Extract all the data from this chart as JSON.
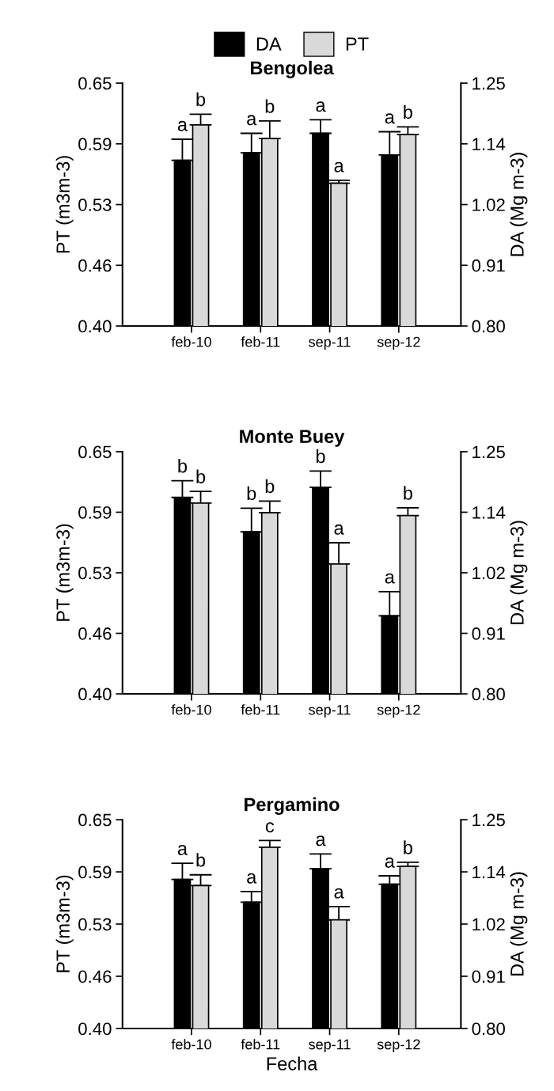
{
  "chart_data": [
    {
      "type": "bar",
      "title": "Bengolea",
      "ylabel": "PT (m3m-3)",
      "y2label": "DA (Mg m-3)",
      "categories": [
        "feb-10",
        "feb-11",
        "sep-11",
        "sep-12"
      ],
      "legend": "top",
      "grid": false,
      "ylim": [
        0.4,
        0.65
      ],
      "yticks": [
        {
          "value": 0.4,
          "label": "0.40"
        },
        {
          "value": 0.4625,
          "label": "0.46"
        },
        {
          "value": 0.525,
          "label": "0.53"
        },
        {
          "value": 0.5875,
          "label": "0.59"
        },
        {
          "value": 0.65,
          "label": "0.65"
        }
      ],
      "y2lim": [
        0.8,
        1.25
      ],
      "y2ticks": [
        {
          "value": 0.8,
          "label": "0.80"
        },
        {
          "value": 0.9125,
          "label": "0.91"
        },
        {
          "value": 1.025,
          "label": "1.02"
        },
        {
          "value": 1.1375,
          "label": "1.14"
        },
        {
          "value": 1.25,
          "label": "1.25"
        }
      ],
      "series": [
        {
          "name": "DA",
          "color": "#000000",
          "axis": "y2",
          "values": [
            1.107,
            1.121,
            1.157,
            1.117
          ],
          "errors": [
            [
              1.107,
              1.146
            ],
            [
              1.121,
              1.157
            ],
            [
              1.157,
              1.182
            ],
            [
              1.117,
              1.16
            ]
          ],
          "value_labels": [
            "a",
            "a",
            "a",
            "a"
          ]
        },
        {
          "name": "PT",
          "color": "#d9d9d9",
          "values": [
            0.607,
            0.593,
            0.547,
            0.597
          ],
          "errors": [
            [
              0.607,
              0.618
            ],
            [
              0.593,
              0.611
            ],
            [
              0.547,
              0.55
            ],
            [
              0.597,
              0.605
            ]
          ],
          "value_labels": [
            "b",
            "b",
            "a",
            "b"
          ]
        }
      ]
    },
    {
      "type": "bar",
      "title": "Monte Buey",
      "ylabel": "PT (m3m-3)",
      "y2label": "DA (Mg m-3)",
      "categories": [
        "feb-10",
        "feb-11",
        "sep-11",
        "sep-12"
      ],
      "grid": false,
      "ylim": [
        0.4,
        0.65
      ],
      "yticks": [
        {
          "value": 0.4,
          "label": "0.40"
        },
        {
          "value": 0.4625,
          "label": "0.46"
        },
        {
          "value": 0.525,
          "label": "0.53"
        },
        {
          "value": 0.5875,
          "label": "0.59"
        },
        {
          "value": 0.65,
          "label": "0.65"
        }
      ],
      "y2lim": [
        0.8,
        1.25
      ],
      "y2ticks": [
        {
          "value": 0.8,
          "label": "0.80"
        },
        {
          "value": 0.9125,
          "label": "0.91"
        },
        {
          "value": 1.025,
          "label": "1.02"
        },
        {
          "value": 1.1375,
          "label": "1.14"
        },
        {
          "value": 1.25,
          "label": "1.25"
        }
      ],
      "series": [
        {
          "color": "#000000",
          "axis": "y2",
          "values": [
            1.165,
            1.101,
            1.184,
            0.945
          ],
          "errors": [
            [
              1.165,
              1.196
            ],
            [
              1.101,
              1.145
            ],
            [
              1.184,
              1.214
            ],
            [
              0.945,
              0.99
            ]
          ],
          "value_labels": [
            "b",
            "b",
            "b",
            "a"
          ]
        },
        {
          "color": "#d9d9d9",
          "values": [
            0.597,
            0.587,
            0.534,
            0.584
          ],
          "errors": [
            [
              0.597,
              0.609
            ],
            [
              0.587,
              0.599
            ],
            [
              0.534,
              0.556
            ],
            [
              0.584,
              0.592
            ]
          ],
          "value_labels": [
            "b",
            "b",
            "a",
            "b"
          ]
        }
      ]
    },
    {
      "type": "bar",
      "title": "Pergamino",
      "xlabel": "Fecha",
      "ylabel": "PT (m3m-3)",
      "y2label": "DA (Mg m-3)",
      "categories": [
        "feb-10",
        "feb-11",
        "sep-11",
        "sep-12"
      ],
      "grid": false,
      "ylim": [
        0.4,
        0.65
      ],
      "yticks": [
        {
          "value": 0.4,
          "label": "0.40"
        },
        {
          "value": 0.4625,
          "label": "0.46"
        },
        {
          "value": 0.525,
          "label": "0.53"
        },
        {
          "value": 0.5875,
          "label": "0.59"
        },
        {
          "value": 0.65,
          "label": "0.65"
        }
      ],
      "y2lim": [
        0.8,
        1.25
      ],
      "y2ticks": [
        {
          "value": 0.8,
          "label": "0.80"
        },
        {
          "value": 0.9125,
          "label": "0.91"
        },
        {
          "value": 1.025,
          "label": "1.02"
        },
        {
          "value": 1.1375,
          "label": "1.14"
        },
        {
          "value": 1.25,
          "label": "1.25"
        }
      ],
      "series": [
        {
          "color": "#000000",
          "axis": "y2",
          "values": [
            1.121,
            1.072,
            1.144,
            1.111
          ],
          "errors": [
            [
              1.121,
              1.156
            ],
            [
              1.072,
              1.095
            ],
            [
              1.144,
              1.176
            ],
            [
              1.111,
              1.129
            ]
          ],
          "value_labels": [
            "a",
            "a",
            "a",
            "a"
          ]
        },
        {
          "color": "#d9d9d9",
          "values": [
            0.571,
            0.617,
            0.53,
            0.594
          ],
          "errors": [
            [
              0.571,
              0.584
            ],
            [
              0.617,
              0.625
            ],
            [
              0.53,
              0.546
            ],
            [
              0.594,
              0.599
            ]
          ],
          "value_labels": [
            "b",
            "c",
            "a",
            "b"
          ]
        }
      ]
    }
  ]
}
